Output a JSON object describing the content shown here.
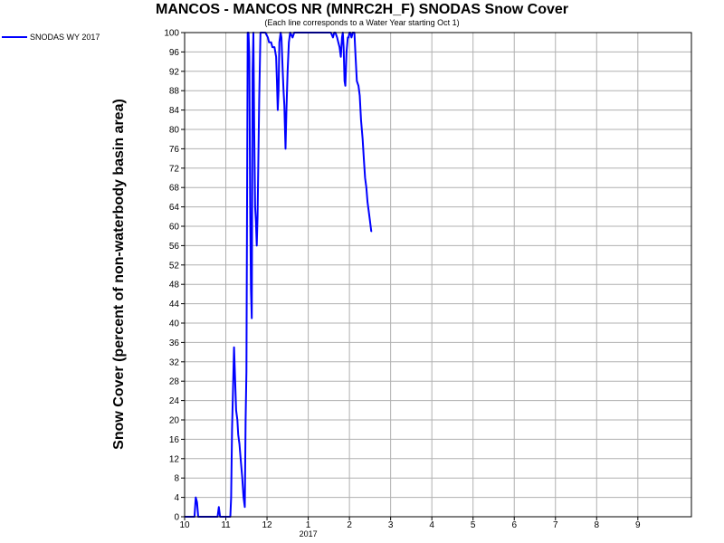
{
  "chart_data": {
    "type": "line",
    "title": "MANCOS - MANCOS NR (MNRC2H_F) SNODAS Snow Cover",
    "subtitle": "(Each line corresponds to a Water Year starting Oct 1)",
    "ylabel": "Snow Cover (percent of non-waterbody basin area)",
    "xlabel": "",
    "year_label": "2017",
    "ylim": [
      0,
      100
    ],
    "xlim": [
      0,
      12.3
    ],
    "yticks": [
      0,
      4,
      8,
      12,
      16,
      20,
      24,
      28,
      32,
      36,
      40,
      44,
      48,
      52,
      56,
      60,
      64,
      68,
      72,
      76,
      80,
      84,
      88,
      92,
      96,
      100
    ],
    "xticks": [
      {
        "v": 0,
        "label": "10"
      },
      {
        "v": 1,
        "label": "11"
      },
      {
        "v": 2,
        "label": "12"
      },
      {
        "v": 3,
        "label": "1"
      },
      {
        "v": 4,
        "label": "2"
      },
      {
        "v": 5,
        "label": "3"
      },
      {
        "v": 6,
        "label": "4"
      },
      {
        "v": 7,
        "label": "5"
      },
      {
        "v": 8,
        "label": "6"
      },
      {
        "v": 9,
        "label": "7"
      },
      {
        "v": 10,
        "label": "8"
      },
      {
        "v": 11,
        "label": "9"
      }
    ],
    "grid": true,
    "legend_position": "top-left",
    "series": [
      {
        "name": "SNODAS WY 2017",
        "color": "#0000ff",
        "points": [
          [
            0.0,
            0
          ],
          [
            0.24,
            0
          ],
          [
            0.27,
            4
          ],
          [
            0.3,
            3
          ],
          [
            0.33,
            0
          ],
          [
            0.5,
            0
          ],
          [
            0.7,
            0
          ],
          [
            0.8,
            0
          ],
          [
            0.83,
            2
          ],
          [
            0.86,
            0
          ],
          [
            1.0,
            0
          ],
          [
            1.11,
            0
          ],
          [
            1.13,
            4
          ],
          [
            1.15,
            18
          ],
          [
            1.18,
            28
          ],
          [
            1.2,
            35
          ],
          [
            1.22,
            30
          ],
          [
            1.25,
            22
          ],
          [
            1.28,
            20
          ],
          [
            1.3,
            17
          ],
          [
            1.33,
            15
          ],
          [
            1.36,
            12
          ],
          [
            1.38,
            10
          ],
          [
            1.4,
            8
          ],
          [
            1.43,
            4
          ],
          [
            1.46,
            2
          ],
          [
            1.48,
            20
          ],
          [
            1.5,
            30
          ],
          [
            1.53,
            100
          ],
          [
            1.55,
            100
          ],
          [
            1.57,
            95
          ],
          [
            1.59,
            65
          ],
          [
            1.61,
            47
          ],
          [
            1.63,
            41
          ],
          [
            1.65,
            92
          ],
          [
            1.67,
            100
          ],
          [
            1.69,
            80
          ],
          [
            1.71,
            64
          ],
          [
            1.73,
            61
          ],
          [
            1.75,
            56
          ],
          [
            1.77,
            62
          ],
          [
            1.79,
            74
          ],
          [
            1.81,
            86
          ],
          [
            1.84,
            100
          ],
          [
            1.88,
            100
          ],
          [
            1.93,
            100
          ],
          [
            1.96,
            100
          ],
          [
            2.02,
            99
          ],
          [
            2.05,
            98
          ],
          [
            2.1,
            98
          ],
          [
            2.13,
            97
          ],
          [
            2.18,
            97
          ],
          [
            2.22,
            95
          ],
          [
            2.24,
            90
          ],
          [
            2.26,
            84
          ],
          [
            2.28,
            88
          ],
          [
            2.3,
            98
          ],
          [
            2.33,
            100
          ],
          [
            2.35,
            99
          ],
          [
            2.38,
            92
          ],
          [
            2.4,
            88
          ],
          [
            2.42,
            85
          ],
          [
            2.43,
            82
          ],
          [
            2.45,
            76
          ],
          [
            2.47,
            84
          ],
          [
            2.5,
            92
          ],
          [
            2.53,
            98
          ],
          [
            2.56,
            100
          ],
          [
            2.62,
            99
          ],
          [
            2.66,
            100
          ],
          [
            2.7,
            100
          ],
          [
            3.0,
            100
          ],
          [
            3.3,
            100
          ],
          [
            3.55,
            100
          ],
          [
            3.6,
            99
          ],
          [
            3.63,
            100
          ],
          [
            3.66,
            100
          ],
          [
            3.7,
            99
          ],
          [
            3.73,
            98
          ],
          [
            3.76,
            97
          ],
          [
            3.79,
            95
          ],
          [
            3.82,
            99
          ],
          [
            3.84,
            100
          ],
          [
            3.86,
            97
          ],
          [
            3.88,
            90
          ],
          [
            3.9,
            89
          ],
          [
            3.93,
            96
          ],
          [
            3.96,
            99
          ],
          [
            3.98,
            99
          ],
          [
            4.0,
            100
          ],
          [
            4.02,
            100
          ],
          [
            4.05,
            99
          ],
          [
            4.08,
            100
          ],
          [
            4.12,
            100
          ],
          [
            4.15,
            95
          ],
          [
            4.18,
            90
          ],
          [
            4.22,
            89
          ],
          [
            4.25,
            87
          ],
          [
            4.28,
            82
          ],
          [
            4.32,
            78
          ],
          [
            4.35,
            74
          ],
          [
            4.38,
            70
          ],
          [
            4.41,
            68
          ],
          [
            4.44,
            65
          ],
          [
            4.47,
            63
          ],
          [
            4.5,
            61
          ],
          [
            4.53,
            59
          ],
          [
            4.55,
            59
          ]
        ]
      }
    ]
  }
}
